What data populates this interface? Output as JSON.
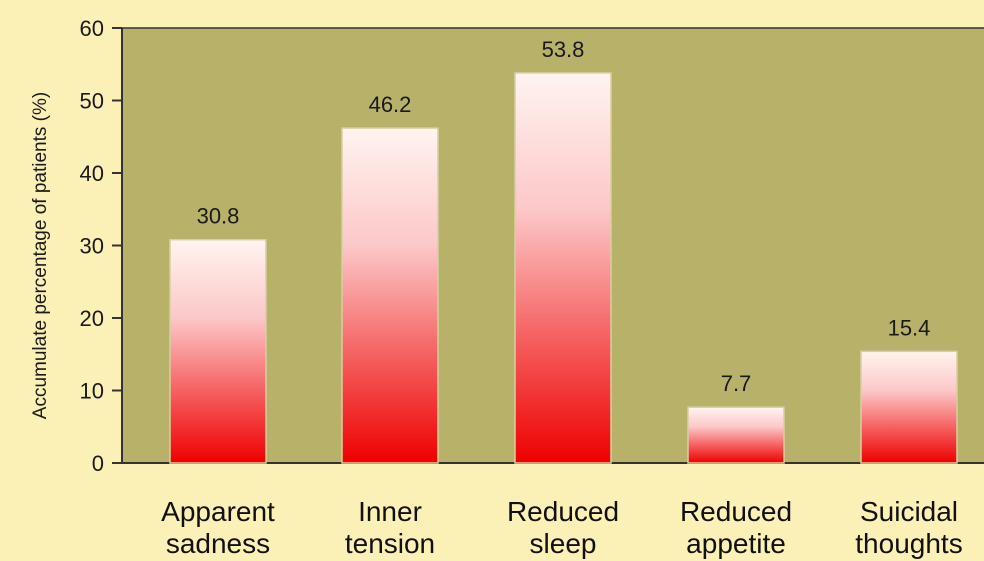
{
  "chart_data": {
    "type": "bar",
    "title": "",
    "xlabel": "",
    "ylabel": "Accumulate percentage of patients (%)",
    "ylim": [
      0,
      60
    ],
    "yticks": [
      0,
      10,
      20,
      30,
      40,
      50,
      60
    ],
    "categories": [
      [
        "Apparent",
        "sadness"
      ],
      [
        "Inner",
        "tension"
      ],
      [
        "Reduced",
        "sleep"
      ],
      [
        "Reduced",
        "appetite"
      ],
      [
        "Suicidal",
        "thoughts"
      ]
    ],
    "values": [
      30.8,
      46.2,
      53.8,
      7.7,
      15.4
    ],
    "value_labels": [
      "30.8",
      "46.2",
      "53.8",
      "7.7",
      "15.4"
    ],
    "grid": false,
    "legend": "none",
    "colors": {
      "page_background": "#fbf0b6",
      "plot_background": "#b8b16a",
      "bar_top": "#fff4f0",
      "bar_bottom": "#ee0000",
      "axis": "#333333"
    }
  }
}
